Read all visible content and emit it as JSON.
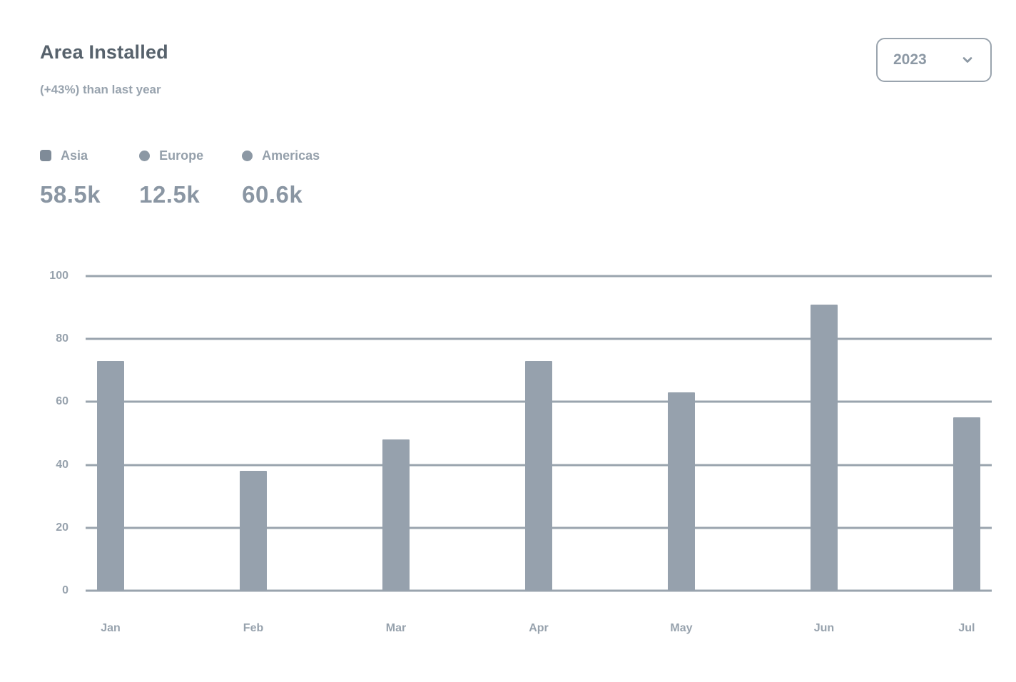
{
  "header": {
    "title": "Area Installed",
    "subtitle": "(+43%) than last year"
  },
  "year_select": {
    "value": "2023",
    "icon": "chevron-down-icon"
  },
  "legend": {
    "items": [
      {
        "label": "Asia",
        "total": "58.5k",
        "marker_shape": "square",
        "marker_color": "#7f8b98"
      },
      {
        "label": "Europe",
        "total": "12.5k",
        "marker_shape": "circle",
        "marker_color": "#8c98a4"
      },
      {
        "label": "Americas",
        "total": "60.6k",
        "marker_shape": "circle",
        "marker_color": "#8c98a4"
      }
    ]
  },
  "chart_data": {
    "type": "bar",
    "categories": [
      "Jan",
      "Feb",
      "Mar",
      "Apr",
      "May",
      "Jun",
      "Jul"
    ],
    "values": [
      73,
      38,
      48,
      73,
      63,
      91,
      55
    ],
    "title": "Area Installed",
    "xlabel": "",
    "ylabel": "",
    "ylim": [
      0,
      100
    ],
    "yticks": [
      0,
      20,
      40,
      60,
      80,
      100
    ],
    "grid": true,
    "legend_position": "top-left",
    "bar_color": "#96a1ad",
    "grid_color": "#9aa4ae"
  }
}
